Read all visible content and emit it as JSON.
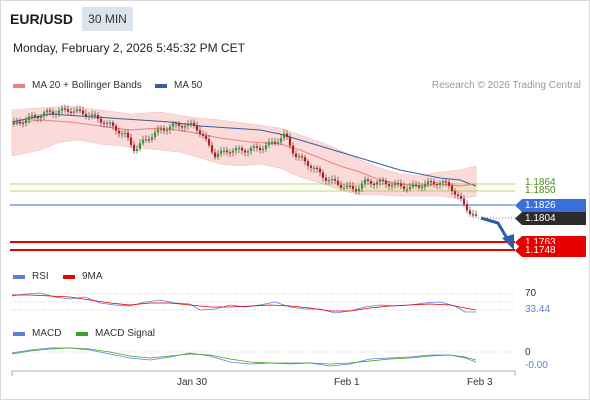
{
  "header": {
    "pair": "EUR/USD",
    "timeframe": "30 MIN",
    "datetime": "Monday, February 2, 2026 5:45:32 PM CET"
  },
  "legend_main": [
    {
      "label": "MA 20 + Bollinger Bands",
      "color": "#f08080"
    },
    {
      "label": "MA 50",
      "color": "#3a5f9e"
    }
  ],
  "credit": "Research © 2026 Trading Central",
  "price_levels": {
    "res_upper": "1.1864",
    "res_lower": "1.1850",
    "pivot": "1.1826",
    "current": "1.1804",
    "sup_1": "1.1763",
    "sup_2": "1.1748"
  },
  "legend_rsi": [
    {
      "label": "RSI",
      "color": "#5b7fd6"
    },
    {
      "label": "9MA",
      "color": "#e60000"
    }
  ],
  "rsi_levels": {
    "upper": "70",
    "current": "33.44"
  },
  "legend_macd": [
    {
      "label": "MACD",
      "color": "#5b7fd6"
    },
    {
      "label": "MACD Signal",
      "color": "#3fa12a"
    }
  ],
  "macd_levels": {
    "zero": "0",
    "current": "-0.00"
  },
  "x_axis": {
    "ticks": [
      "Jan 30",
      "Feb 1",
      "Feb 3"
    ]
  },
  "colors": {
    "up": "#2e9e2e",
    "down": "#c0161d",
    "pivot": "#3a6fd8",
    "support": "#e60000",
    "resistance": "#9acd32",
    "arrow": "#2a5ea8"
  }
}
